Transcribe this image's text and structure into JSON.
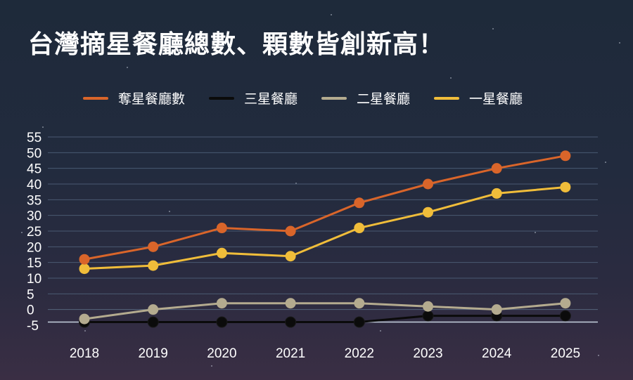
{
  "title": "台灣摘星餐廳總數、顆數皆創新高！",
  "chart_data": {
    "type": "line",
    "title": "台灣摘星餐廳總數、顆數皆創新高！",
    "xlabel": "",
    "ylabel": "",
    "x": [
      "2018",
      "2019",
      "2020",
      "2021",
      "2022",
      "2023",
      "2024",
      "2025"
    ],
    "y_ticks": [
      "55",
      "50",
      "45",
      "40",
      "35",
      "30",
      "25",
      "20",
      "15",
      "10",
      "5",
      "0",
      "-5"
    ],
    "ylim": [
      -5,
      55
    ],
    "grid": true,
    "legend_position": "top",
    "series": [
      {
        "name": "奪星餐廳數",
        "color": "#d9652a",
        "values": [
          16,
          20,
          26,
          25,
          34,
          40,
          45,
          49
        ]
      },
      {
        "name": "三星餐廳",
        "color": "#0b0b0b",
        "values": [
          -4,
          -4,
          -4,
          -4,
          -4,
          -2,
          -2,
          -2
        ]
      },
      {
        "name": "二星餐廳",
        "color": "#b4ab8f",
        "values": [
          -3,
          0,
          2,
          2,
          2,
          1,
          0,
          2
        ]
      },
      {
        "name": "一星餐廳",
        "color": "#f0bd3a",
        "values": [
          13,
          14,
          18,
          17,
          26,
          31,
          37,
          39
        ]
      }
    ]
  },
  "colors": {
    "grid": "#4a5a72",
    "zero_line": "#c8d2e0",
    "text": "#ffffff"
  }
}
